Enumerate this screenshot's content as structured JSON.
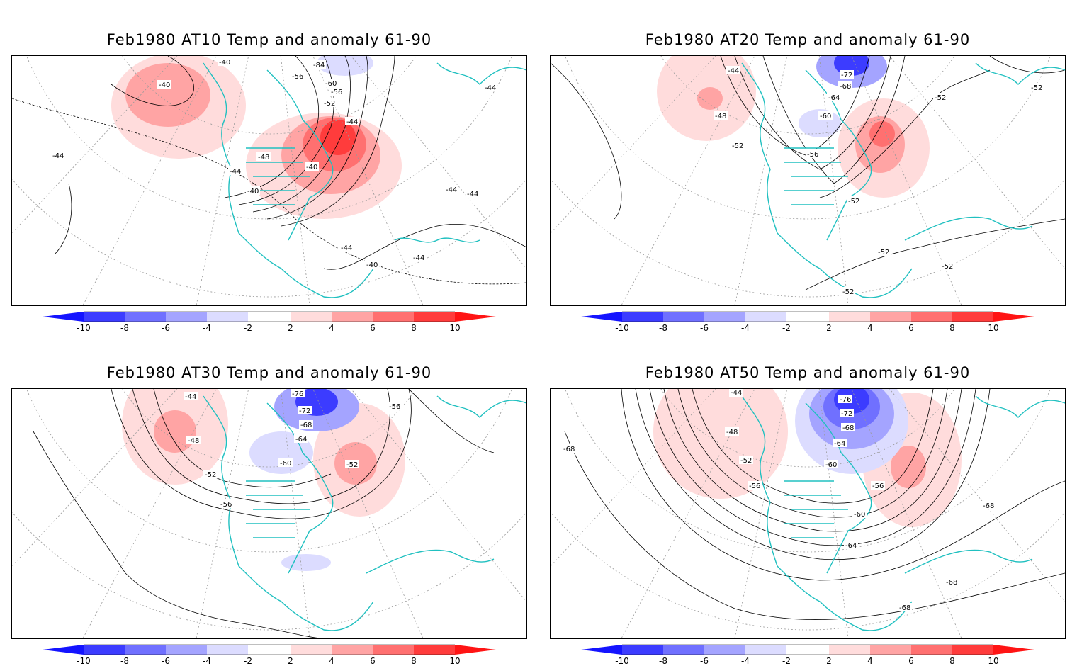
{
  "panels": [
    {
      "title": "Feb1980 AT10 Temp and anomaly 61-90",
      "contour_labels": [
        "-40",
        "-40",
        "-84",
        "-56",
        "-60",
        "-56",
        "-52",
        "-44",
        "-48",
        "-44",
        "-40",
        "-40",
        "-44",
        "-44",
        "-44",
        "-44",
        "-44",
        "-40",
        "-44"
      ]
    },
    {
      "title": "Feb1980 AT20 Temp and anomaly 61-90",
      "contour_labels": [
        "-44",
        "-72",
        "-68",
        "-64",
        "-60",
        "-52",
        "-52",
        "-48",
        "-52",
        "-56",
        "-52",
        "-52",
        "-52",
        "-52"
      ]
    },
    {
      "title": "Feb1980 AT30 Temp and anomaly 61-90",
      "contour_labels": [
        "-44",
        "-76",
        "-72",
        "-68",
        "-64",
        "-48",
        "-60",
        "-52",
        "-52",
        "-56",
        "-56"
      ]
    },
    {
      "title": "Feb1980 AT50 Temp and anomaly 61-90",
      "contour_labels": [
        "-44",
        "-76",
        "-72",
        "-68",
        "-64",
        "-48",
        "-52",
        "-60",
        "-56",
        "-56",
        "-60",
        "-64",
        "-68",
        "-68",
        "-68",
        "-68"
      ]
    }
  ],
  "colorbar": {
    "ticks": [
      "-10",
      "-8",
      "-6",
      "-4",
      "-2",
      "2",
      "4",
      "6",
      "8",
      "10"
    ],
    "colors": [
      "#1414ff",
      "#3c3cff",
      "#7070ff",
      "#a4a4ff",
      "#dcdcff",
      "#ffffff",
      "#ffdcdc",
      "#ffa4a4",
      "#ff7070",
      "#ff3c3c",
      "#ff1414"
    ]
  },
  "colors": {
    "coastline": "#20c0c0",
    "contour": "#000000",
    "grid": "#999999"
  }
}
